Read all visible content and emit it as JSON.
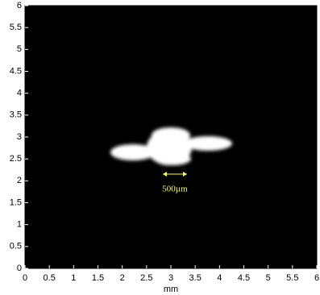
{
  "chart_data": {
    "type": "image",
    "x_label": "mm",
    "annotation": "500µm",
    "xlim": [
      0,
      6
    ],
    "ylim": [
      0,
      6
    ],
    "xticks": [
      0,
      0.5,
      1,
      1.5,
      2,
      2.5,
      3,
      3.5,
      4,
      4.5,
      5,
      5.5,
      6
    ],
    "yticks": [
      0,
      0.5,
      1,
      1.5,
      2,
      2.5,
      3,
      3.5,
      4,
      4.5,
      5,
      5.5,
      6
    ]
  }
}
